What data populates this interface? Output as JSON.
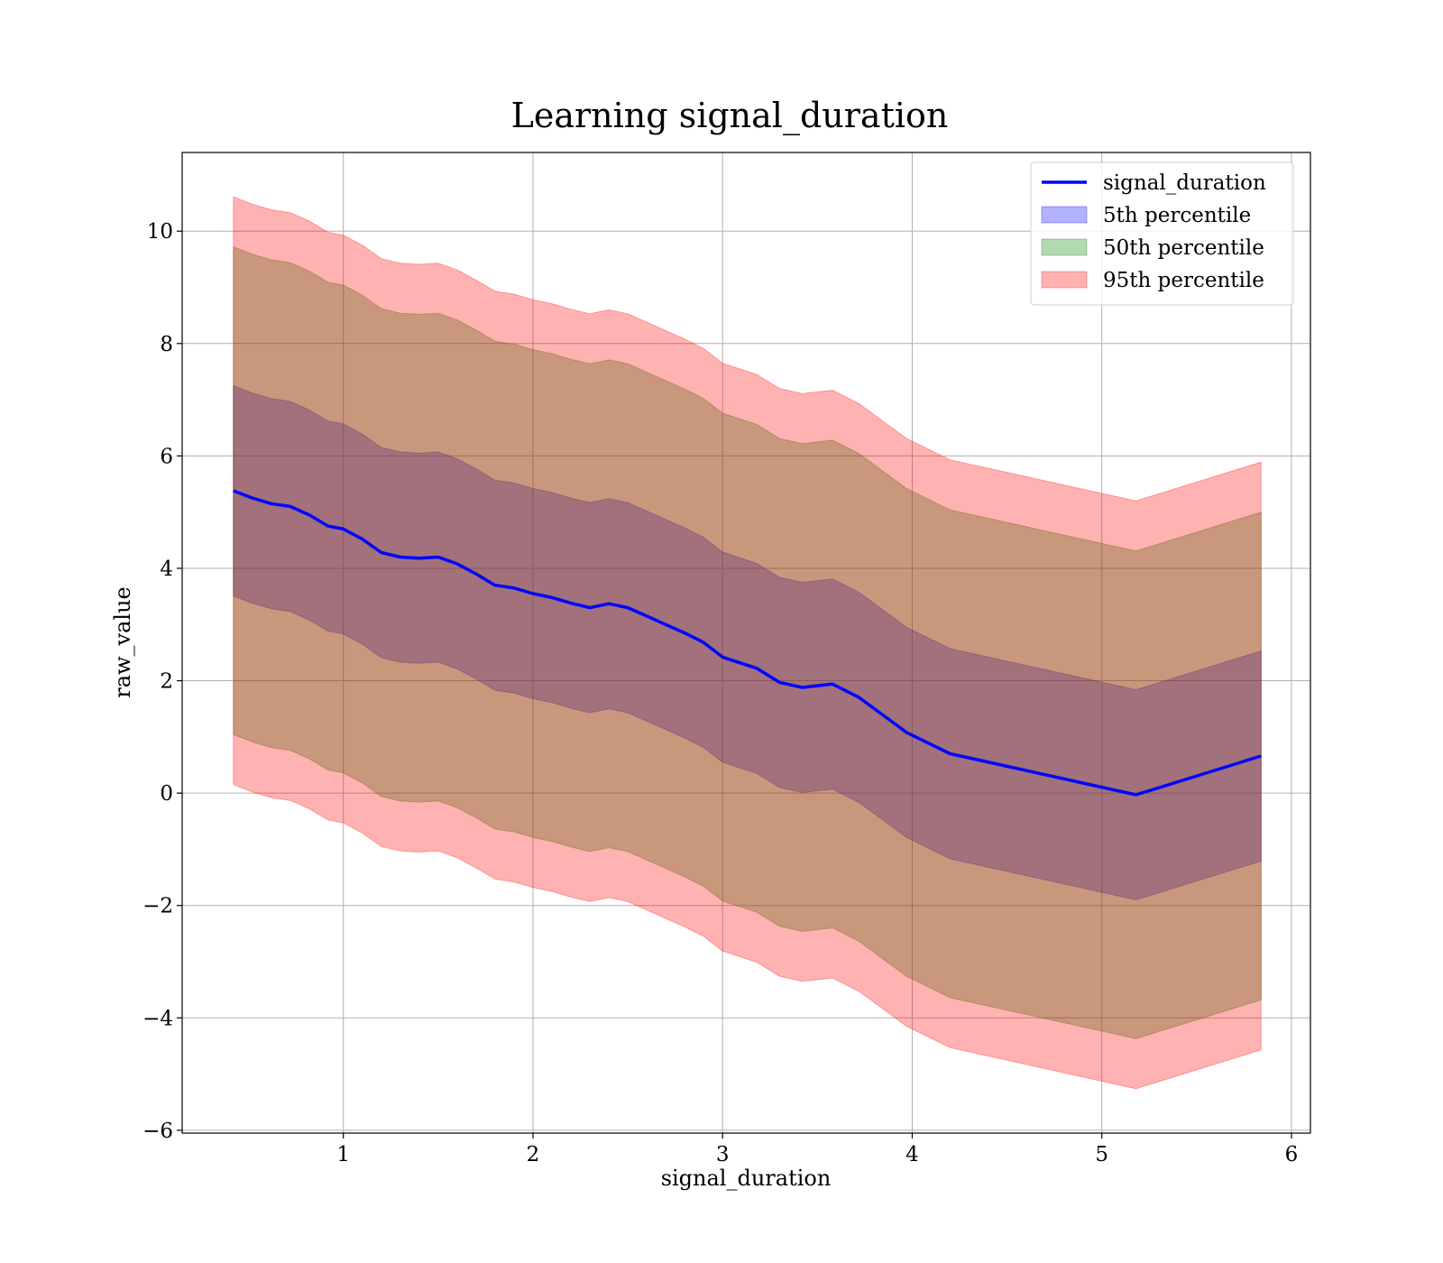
{
  "chart_data": {
    "type": "area",
    "title": "Learning signal_duration",
    "xlabel": "signal_duration",
    "ylabel": "raw_value",
    "xlim": [
      0.15,
      6.1
    ],
    "ylim": [
      -6.05,
      11.4
    ],
    "xticks": [
      1,
      2,
      3,
      4,
      5,
      6
    ],
    "yticks": [
      -6,
      -4,
      -2,
      0,
      2,
      4,
      6,
      8,
      10
    ],
    "xtick_labels": [
      "1",
      "2",
      "3",
      "4",
      "5",
      "6"
    ],
    "ytick_labels": [
      "−6",
      "−4",
      "−2",
      "0",
      "2",
      "4",
      "6",
      "8",
      "10"
    ],
    "grid": true,
    "legend_position": "top-right",
    "x": [
      0.42,
      0.52,
      0.62,
      0.72,
      0.82,
      0.92,
      1.0,
      1.1,
      1.2,
      1.3,
      1.4,
      1.5,
      1.6,
      1.7,
      1.8,
      1.9,
      2.0,
      2.1,
      2.2,
      2.3,
      2.4,
      2.5,
      2.6,
      2.7,
      2.8,
      2.9,
      3.0,
      3.18,
      3.3,
      3.42,
      3.58,
      3.72,
      3.97,
      4.2,
      5.18,
      5.84
    ],
    "series": [
      {
        "name": "signal_duration",
        "kind": "line",
        "color": "#0000ff",
        "values": [
          5.38,
          5.25,
          5.15,
          5.1,
          4.95,
          4.75,
          4.7,
          4.52,
          4.28,
          4.2,
          4.18,
          4.2,
          4.08,
          3.9,
          3.7,
          3.65,
          3.55,
          3.48,
          3.38,
          3.3,
          3.37,
          3.3,
          3.15,
          3.0,
          2.85,
          2.68,
          2.42,
          2.22,
          1.97,
          1.88,
          1.94,
          1.7,
          1.08,
          0.7,
          -0.03,
          0.66
        ]
      },
      {
        "name": "5th percentile",
        "kind": "band",
        "color": "#0000ff",
        "upper_offset": 1.87,
        "lower_offset": -1.87
      },
      {
        "name": "50th percentile",
        "kind": "band",
        "color": "#008000",
        "upper_offset": 4.34,
        "lower_offset": -4.34
      },
      {
        "name": "95th percentile",
        "kind": "band",
        "color": "#ff0000",
        "upper_offset": 5.23,
        "lower_offset": -5.23
      }
    ]
  }
}
